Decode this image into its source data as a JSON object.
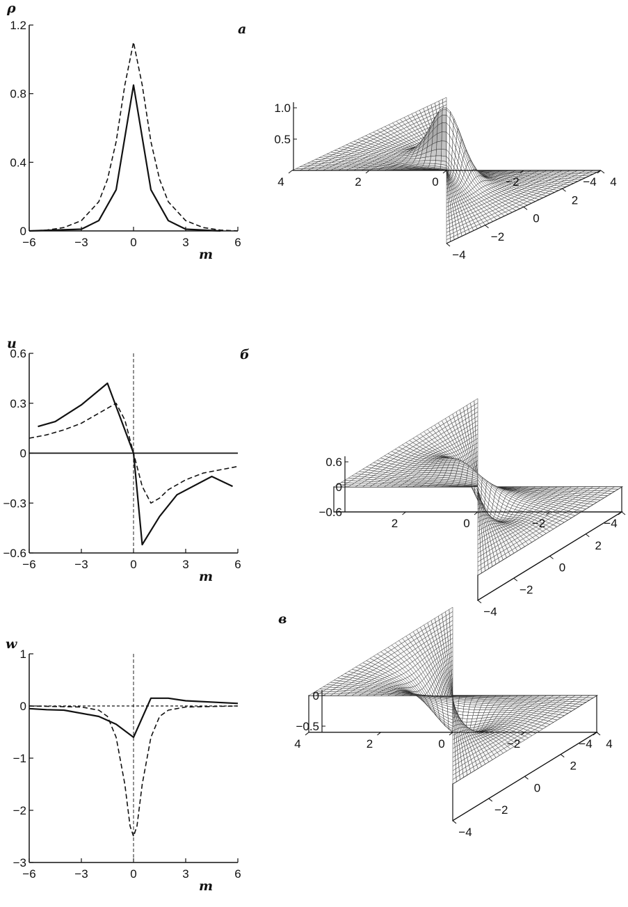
{
  "chart_data": [
    {
      "panel": "а",
      "type": "line",
      "ylabel": "ρ",
      "xlabel": "m",
      "xlim": [
        -6,
        6
      ],
      "ylim": [
        0,
        1.2
      ],
      "xticks": [
        "−6",
        "−3",
        "0",
        "3",
        "6"
      ],
      "yticks": [
        "0",
        "0.4",
        "0.8",
        "1.2"
      ],
      "series": [
        {
          "style": "solid",
          "x": [
            -6,
            -3,
            -2,
            -1,
            0,
            1,
            2,
            3,
            5
          ],
          "y": [
            0,
            0.01,
            0.06,
            0.24,
            0.85,
            0.24,
            0.06,
            0.01,
            0
          ]
        },
        {
          "style": "dashed",
          "x": [
            -6,
            -5,
            -4,
            -3,
            -2,
            -1.5,
            -1,
            -0.5,
            0,
            0.5,
            1,
            1.5,
            2,
            3,
            4,
            5,
            6
          ],
          "y": [
            0,
            0.005,
            0.02,
            0.06,
            0.17,
            0.3,
            0.52,
            0.85,
            1.1,
            0.85,
            0.52,
            0.3,
            0.17,
            0.06,
            0.02,
            0.005,
            0
          ]
        }
      ],
      "surface": {
        "zticks": [
          "1.0",
          "0.5"
        ],
        "xticks": [
          "4",
          "2",
          "0",
          "−2",
          "−4"
        ],
        "yticks": [
          "4",
          "2",
          "0",
          "−2",
          "−4"
        ]
      }
    },
    {
      "panel": "б",
      "type": "line",
      "ylabel": "u",
      "xlabel": "m",
      "xlim": [
        -6,
        6
      ],
      "ylim": [
        -0.6,
        0.6
      ],
      "xticks": [
        "−6",
        "−3",
        "0",
        "3",
        "6"
      ],
      "yticks": [
        "0.6",
        "0.3",
        "0",
        "−0.3",
        "−0.6"
      ],
      "series": [
        {
          "style": "solid",
          "x": [
            -5.5,
            -4.5,
            -3,
            -1.5,
            0,
            0.5,
            1.5,
            2.5,
            4.5,
            5.7
          ],
          "y": [
            0.16,
            0.19,
            0.29,
            0.42,
            0,
            -0.55,
            -0.38,
            -0.25,
            -0.14,
            -0.2
          ]
        },
        {
          "style": "dashed",
          "x": [
            -6,
            -5,
            -4,
            -3,
            -2,
            -1,
            -0.5,
            0,
            0.5,
            1,
            1.5,
            2,
            3,
            4,
            5,
            6
          ],
          "y": [
            0.09,
            0.11,
            0.14,
            0.18,
            0.24,
            0.3,
            0.2,
            0,
            -0.2,
            -0.3,
            -0.27,
            -0.22,
            -0.16,
            -0.12,
            -0.1,
            -0.08
          ]
        },
        {
          "style": "solid-thin",
          "x": [
            -6,
            6
          ],
          "y": [
            0,
            0
          ]
        }
      ],
      "surface": {
        "zticks": [
          "0.6",
          "0",
          "−0.6"
        ],
        "xticks": [
          "2",
          "0",
          "−2",
          "−4"
        ],
        "yticks": [
          "4",
          "2",
          "0",
          "−2",
          "−4"
        ]
      }
    },
    {
      "panel": "в",
      "type": "line",
      "ylabel": "w",
      "xlabel": "m",
      "xlim": [
        -6,
        6
      ],
      "ylim": [
        -3,
        1
      ],
      "xticks": [
        "−6",
        "−3",
        "0",
        "3",
        "6"
      ],
      "yticks": [
        "1",
        "0",
        "−1",
        "−2",
        "−3"
      ],
      "series": [
        {
          "style": "solid",
          "x": [
            -6,
            -5,
            -4,
            -2,
            -1,
            0,
            1,
            2,
            3,
            6
          ],
          "y": [
            -0.05,
            -0.07,
            -0.08,
            -0.2,
            -0.35,
            -0.6,
            0.15,
            0.15,
            0.1,
            0.05
          ]
        },
        {
          "style": "dashed",
          "x": [
            -6,
            -3,
            -2,
            -1.5,
            -1,
            -0.5,
            -0.2,
            0,
            0.2,
            0.5,
            1,
            1.5,
            2,
            3,
            6
          ],
          "y": [
            0,
            -0.02,
            -0.08,
            -0.2,
            -0.6,
            -1.5,
            -2.3,
            -2.5,
            -2.3,
            -1.5,
            -0.6,
            -0.2,
            -0.08,
            -0.02,
            0
          ]
        },
        {
          "style": "dotted",
          "x": [
            -6,
            6
          ],
          "y": [
            0,
            0
          ]
        }
      ],
      "surface": {
        "zticks": [
          "0",
          "−0.5"
        ],
        "xticks": [
          "4",
          "2",
          "0",
          "−2",
          "−4"
        ],
        "yticks": [
          "4",
          "2",
          "0",
          "−2",
          "−4"
        ]
      }
    }
  ]
}
